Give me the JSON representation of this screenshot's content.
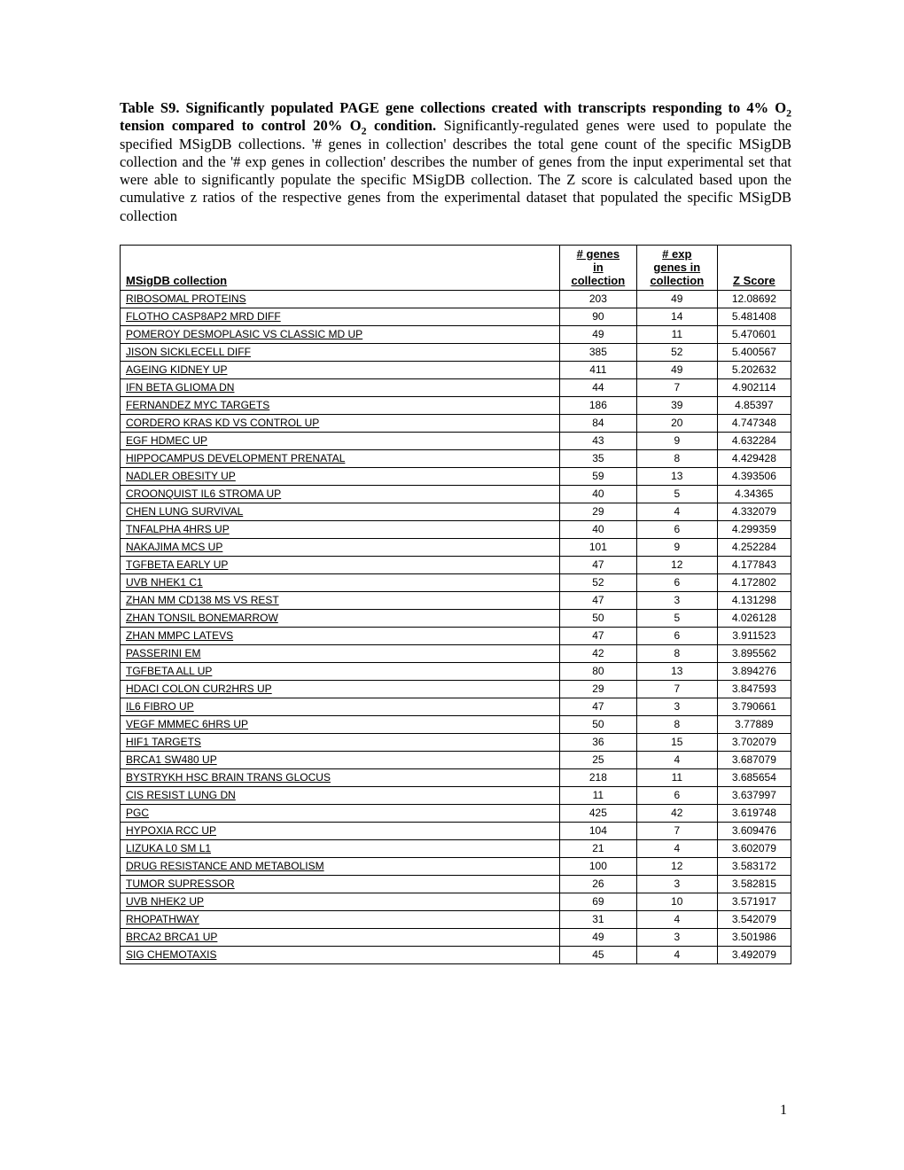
{
  "caption": {
    "bold_lead": "Table S9. Significantly populated PAGE gene collections created with transcripts responding to 4% O",
    "bold_sub1": "2",
    "bold_mid": " tension compared to control 20% O",
    "bold_sub2": "2",
    "bold_end": " condition.",
    "rest": "  Significantly-regulated genes were used to populate the specified MSigDB collections.  '# genes in collection' describes the total gene count of the specific MSigDB collection and the '# exp genes in collection' describes the number of genes from the input experimental set that were able to significantly populate the specific MSigDB collection.  The Z score is calculated based upon the cumulative z ratios of the respective genes from the experimental dataset that populated the specific MSigDB collection"
  },
  "table": {
    "columns": [
      "MSigDB collection",
      "# genes in collection",
      "# exp genes in collection",
      "Z Score"
    ],
    "header_fontsize": 13,
    "cell_fontsize": 12,
    "border_color": "#000000",
    "rows": [
      [
        "RIBOSOMAL PROTEINS",
        "203",
        "49",
        "12.08692"
      ],
      [
        "FLOTHO CASP8AP2 MRD DIFF",
        "90",
        "14",
        "5.481408"
      ],
      [
        "POMEROY DESMOPLASIC VS CLASSIC MD UP",
        "49",
        "11",
        "5.470601"
      ],
      [
        "JISON SICKLECELL DIFF",
        "385",
        "52",
        "5.400567"
      ],
      [
        "AGEING KIDNEY UP",
        "411",
        "49",
        "5.202632"
      ],
      [
        "IFN BETA GLIOMA DN",
        "44",
        "7",
        "4.902114"
      ],
      [
        "FERNANDEZ MYC TARGETS",
        "186",
        "39",
        "4.85397"
      ],
      [
        "CORDERO KRAS KD VS CONTROL UP",
        "84",
        "20",
        "4.747348"
      ],
      [
        "EGF HDMEC UP",
        "43",
        "9",
        "4.632284"
      ],
      [
        "HIPPOCAMPUS DEVELOPMENT PRENATAL",
        "35",
        "8",
        "4.429428"
      ],
      [
        "NADLER OBESITY UP",
        "59",
        "13",
        "4.393506"
      ],
      [
        "CROONQUIST IL6 STROMA UP",
        "40",
        "5",
        "4.34365"
      ],
      [
        "CHEN LUNG SURVIVAL",
        "29",
        "4",
        "4.332079"
      ],
      [
        "TNFALPHA 4HRS UP",
        "40",
        "6",
        "4.299359"
      ],
      [
        "NAKAJIMA MCS UP",
        "101",
        "9",
        "4.252284"
      ],
      [
        "TGFBETA EARLY UP",
        "47",
        "12",
        "4.177843"
      ],
      [
        "UVB NHEK1 C1",
        "52",
        "6",
        "4.172802"
      ],
      [
        "ZHAN MM CD138 MS VS REST",
        "47",
        "3",
        "4.131298"
      ],
      [
        "ZHAN TONSIL BONEMARROW",
        "50",
        "5",
        "4.026128"
      ],
      [
        "ZHAN MMPC LATEVS",
        "47",
        "6",
        "3.911523"
      ],
      [
        "PASSERINI EM",
        "42",
        "8",
        "3.895562"
      ],
      [
        "TGFBETA ALL UP",
        "80",
        "13",
        "3.894276"
      ],
      [
        "HDACI COLON CUR2HRS UP",
        "29",
        "7",
        "3.847593"
      ],
      [
        "IL6 FIBRO UP",
        "47",
        "3",
        "3.790661"
      ],
      [
        "VEGF MMMEC 6HRS UP",
        "50",
        "8",
        "3.77889"
      ],
      [
        "HIF1 TARGETS",
        "36",
        "15",
        "3.702079"
      ],
      [
        "BRCA1 SW480 UP",
        "25",
        "4",
        "3.687079"
      ],
      [
        "BYSTRYKH HSC BRAIN TRANS GLOCUS",
        "218",
        "11",
        "3.685654"
      ],
      [
        "CIS RESIST LUNG DN",
        "11",
        "6",
        "3.637997"
      ],
      [
        "PGC",
        "425",
        "42",
        "3.619748"
      ],
      [
        "HYPOXIA RCC UP",
        "104",
        "7",
        "3.609476"
      ],
      [
        "LIZUKA L0 SM L1",
        "21",
        "4",
        "3.602079"
      ],
      [
        "DRUG RESISTANCE AND METABOLISM",
        "100",
        "12",
        "3.583172"
      ],
      [
        "TUMOR SUPRESSOR",
        "26",
        "3",
        "3.582815"
      ],
      [
        "UVB NHEK2 UP",
        "69",
        "10",
        "3.571917"
      ],
      [
        "RHOPATHWAY",
        "31",
        "4",
        "3.542079"
      ],
      [
        "BRCA2 BRCA1 UP",
        "49",
        "3",
        "3.501986"
      ],
      [
        "SIG CHEMOTAXIS",
        "45",
        "4",
        "3.492079"
      ]
    ]
  },
  "page_number": "1"
}
